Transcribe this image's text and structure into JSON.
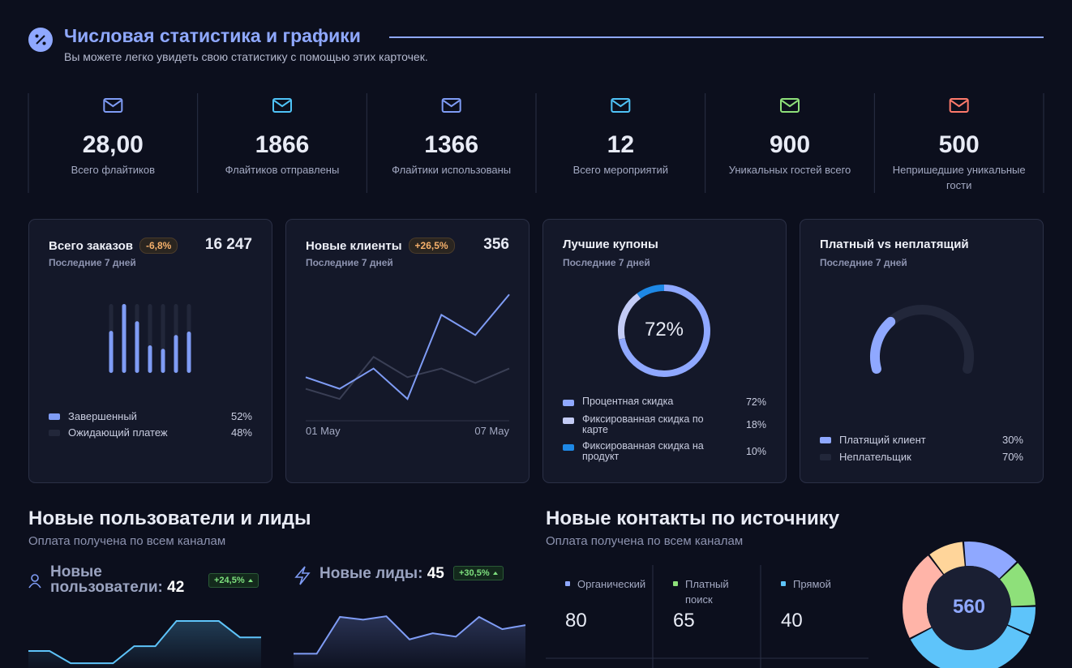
{
  "header": {
    "title": "Числовая статистика и графики",
    "subtitle": "Вы можете легко увидеть свою статистику с помощью этих карточек."
  },
  "stats": [
    {
      "value": "28,00",
      "label": "Всего флайтиков",
      "color": "#7f9cf5"
    },
    {
      "value": 1866,
      "label": "Флайтиков отправлены",
      "color": "#4fc3f7"
    },
    {
      "value": 1366,
      "label": "Флайтики использованы",
      "color": "#7f9cf5"
    },
    {
      "value": 12,
      "label": "Всего мероприятий",
      "color": "#4fc3f7"
    },
    {
      "value": 900,
      "label": "Уникальных гостей всего",
      "color": "#8ee07a"
    },
    {
      "value": 500,
      "label": "Непришедшие уникальные гости",
      "color": "#ff7a6b"
    }
  ],
  "orders": {
    "title": "Всего заказов",
    "change": "-6,8%",
    "total": "16 247",
    "period": "Последние 7 дней",
    "chart_data": {
      "type": "bar",
      "values": [
        61,
        100,
        75,
        40,
        35,
        55,
        60
      ],
      "ylim": [
        0,
        100
      ],
      "color": "#7f9cf5",
      "track_color": "#22273a"
    },
    "legend": [
      {
        "name": "Завершенный",
        "value": "52%",
        "color": "#7f9cf5"
      },
      {
        "name": "Ожидающий платеж",
        "value": "48%",
        "color": "#22273a"
      }
    ]
  },
  "clients": {
    "title": "Новые клиенты",
    "change": "+26,5%",
    "total": 356,
    "period": "Последние 7 дней",
    "chart_data": {
      "type": "line",
      "categories": [
        "01 May",
        null,
        null,
        null,
        null,
        null,
        "07 May"
      ],
      "ylim": [
        0,
        100
      ],
      "series": [
        {
          "color": "#3a3f55",
          "values": [
            22,
            15,
            44,
            30,
            36,
            26,
            36
          ]
        },
        {
          "color": "#7f9cf5",
          "values": [
            30,
            22,
            36,
            15,
            73,
            59,
            87
          ]
        }
      ]
    }
  },
  "coupons": {
    "title": "Лучшие купоны",
    "period": "Последние 7 дней",
    "chart_data": {
      "type": "donut",
      "center_label": "72%",
      "categories": [
        "Процентная скидка",
        "Фиксированная скидка по карте",
        "Фиксированная скидка на продукт"
      ],
      "values": [
        72,
        18,
        10
      ],
      "value_labels": [
        "72%",
        "18%",
        "10%"
      ],
      "colors": [
        "#8fa8ff",
        "#c3cbf5",
        "#1e88e5"
      ]
    }
  },
  "paid": {
    "title": "Платный vs неплатящий",
    "period": "Последние 7 дней",
    "chart_data": {
      "type": "gauge",
      "categories": [
        "Платящий клиент",
        "Неплательщик"
      ],
      "values": [
        30,
        70
      ],
      "value_labels": [
        "30%",
        "70%"
      ],
      "colors": [
        "#8fa8ff",
        "#22273a"
      ]
    }
  },
  "users_section": {
    "title": "Новые пользователи и лиды",
    "subtitle": "Оплата получена по всем каналам",
    "blocks": [
      {
        "label": "Новые пользователи:",
        "value": 42,
        "change": "+24,5%",
        "chart_data": {
          "type": "area",
          "values": [
            25,
            25,
            7,
            7,
            7,
            32,
            32,
            69,
            69,
            69,
            45,
            45
          ],
          "ylim": [
            0,
            100
          ],
          "color": "#5ec4fa"
        }
      },
      {
        "label": "Новые лиды:",
        "value": 45,
        "change": "+30,5%",
        "chart_data": {
          "type": "area",
          "values": [
            21,
            21,
            75,
            71,
            76,
            42,
            51,
            46,
            75,
            57,
            63
          ],
          "ylim": [
            0,
            100
          ],
          "color": "#7f9cf5"
        }
      }
    ]
  },
  "contacts": {
    "title": "Новые контакты по источнику",
    "subtitle": "Оплата получена по всем каналам",
    "total": 560,
    "chart_data": {
      "type": "donut",
      "series": [
        {
          "name": "Органический",
          "value": 80,
          "color": "#8fa8ff"
        },
        {
          "name": "Платный поиск",
          "value": 65,
          "color": "#8ee07a"
        },
        {
          "name": "Прямой",
          "value": 40,
          "color": "#5ec4fa"
        },
        {
          "value": 200,
          "color": "#5ec4fa"
        },
        {
          "value": 125,
          "color": "#ffb4a8"
        },
        {
          "value": 50,
          "color": "#ffd59a"
        }
      ]
    }
  }
}
